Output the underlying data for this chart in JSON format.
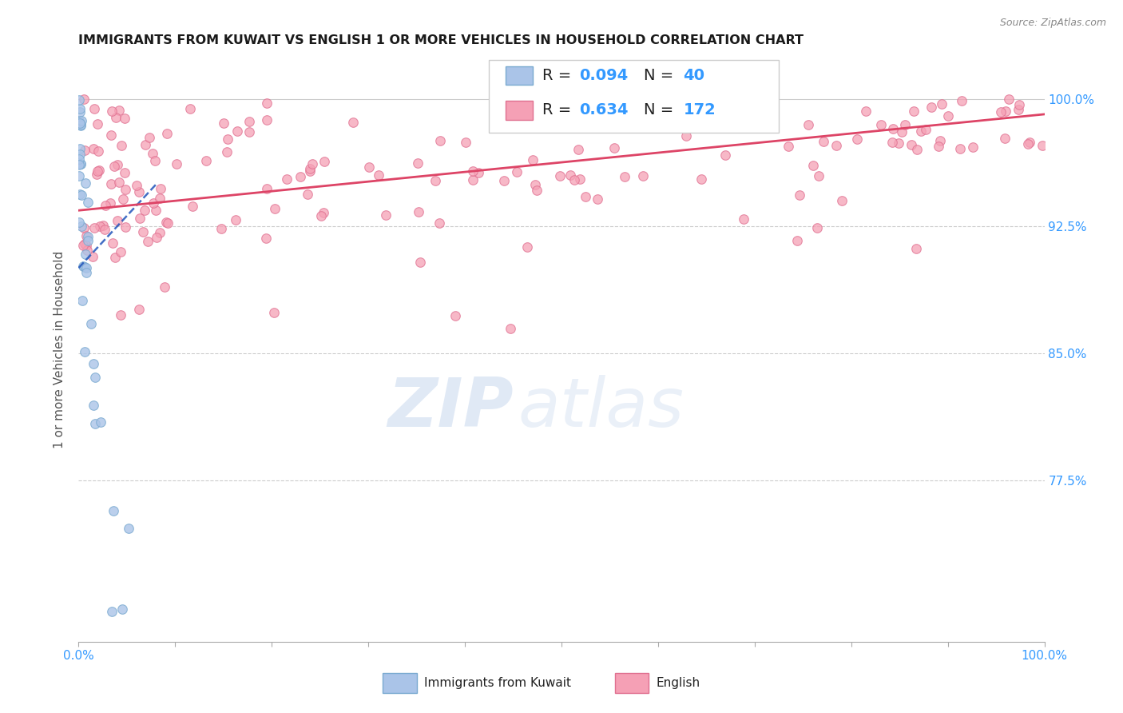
{
  "title": "IMMIGRANTS FROM KUWAIT VS ENGLISH 1 OR MORE VEHICLES IN HOUSEHOLD CORRELATION CHART",
  "source": "Source: ZipAtlas.com",
  "ylabel": "1 or more Vehicles in Household",
  "ytick_labels": [
    "100.0%",
    "92.5%",
    "85.0%",
    "77.5%"
  ],
  "ytick_values": [
    1.0,
    0.925,
    0.85,
    0.775
  ],
  "xlim": [
    0.0,
    1.0
  ],
  "ylim": [
    0.68,
    1.025
  ],
  "bg_color": "#ffffff",
  "title_color": "#1a1a1a",
  "title_fontsize": 11.5,
  "axis_label_color": "#555555",
  "tick_color": "#3399ff",
  "grid_color": "#cccccc",
  "blue_dot_color": "#aac4e8",
  "blue_dot_edge": "#7aaad0",
  "pink_dot_color": "#f5a0b5",
  "pink_dot_edge": "#e07090",
  "blue_line_color": "#2255bb",
  "pink_line_color": "#dd4466",
  "dot_size": 70,
  "legend_fontsize": 14,
  "source_fontsize": 9,
  "legend_R_blue": "0.094",
  "legend_N_blue": "40",
  "legend_R_pink": "0.634",
  "legend_N_pink": "172",
  "legend_label_blue": "Immigrants from Kuwait",
  "legend_label_pink": "English",
  "watermark_zip_color": "#c8d8ee",
  "watermark_atlas_color": "#c8d8ee"
}
